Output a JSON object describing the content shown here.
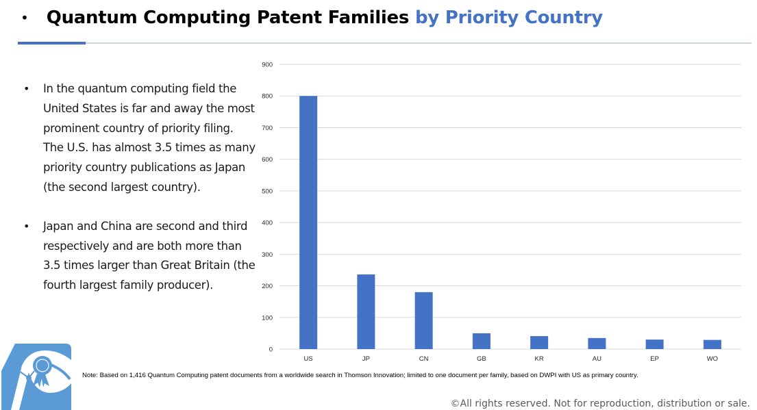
{
  "header": {
    "bullet": "•",
    "title_main": "Quantum Computing Patent Families",
    "title_accent": "by Priority Country"
  },
  "bullets": [
    {
      "marker": "•",
      "text": "In the quantum computing field the United States is far and away the most prominent country of priority filing. The U.S. has almost 3.5 times as many priority country publications as Japan (the second largest country)."
    },
    {
      "marker": "•",
      "text": "Japan and China are second and third respectively and are both more than 3.5 times larger than Great Britain (the fourth largest family producer)."
    }
  ],
  "note": "Note: Based on 1,416 Quantum Computing patent documents from a worldwide search in Thomson Innovation; limited to one document per family, based on DWPI with US as primary country.",
  "copyright": "©All rights reserved. Not for reproduction, distribution or sale.",
  "colors": {
    "accent": "#4472c4",
    "bar": "#4472c4",
    "grid": "#d9d9d9",
    "logo": "#5b9bd5"
  },
  "logo": {
    "icon": "patent-ribbon-logo"
  },
  "chart_data": {
    "type": "bar",
    "title": "",
    "xlabel": "",
    "ylabel": "",
    "categories": [
      "US",
      "JP",
      "CN",
      "GB",
      "KR",
      "AU",
      "EP",
      "WO"
    ],
    "values": [
      800,
      236,
      180,
      50,
      41,
      35,
      30,
      29
    ],
    "ylim": [
      0,
      900
    ],
    "yticks": [
      0,
      100,
      200,
      300,
      400,
      500,
      600,
      700,
      800,
      900
    ],
    "ytick_labels": [
      "0",
      "100",
      "200",
      "300",
      "400",
      "500",
      "600",
      "700",
      "800",
      "900"
    ],
    "grid": true,
    "legend": "none"
  }
}
